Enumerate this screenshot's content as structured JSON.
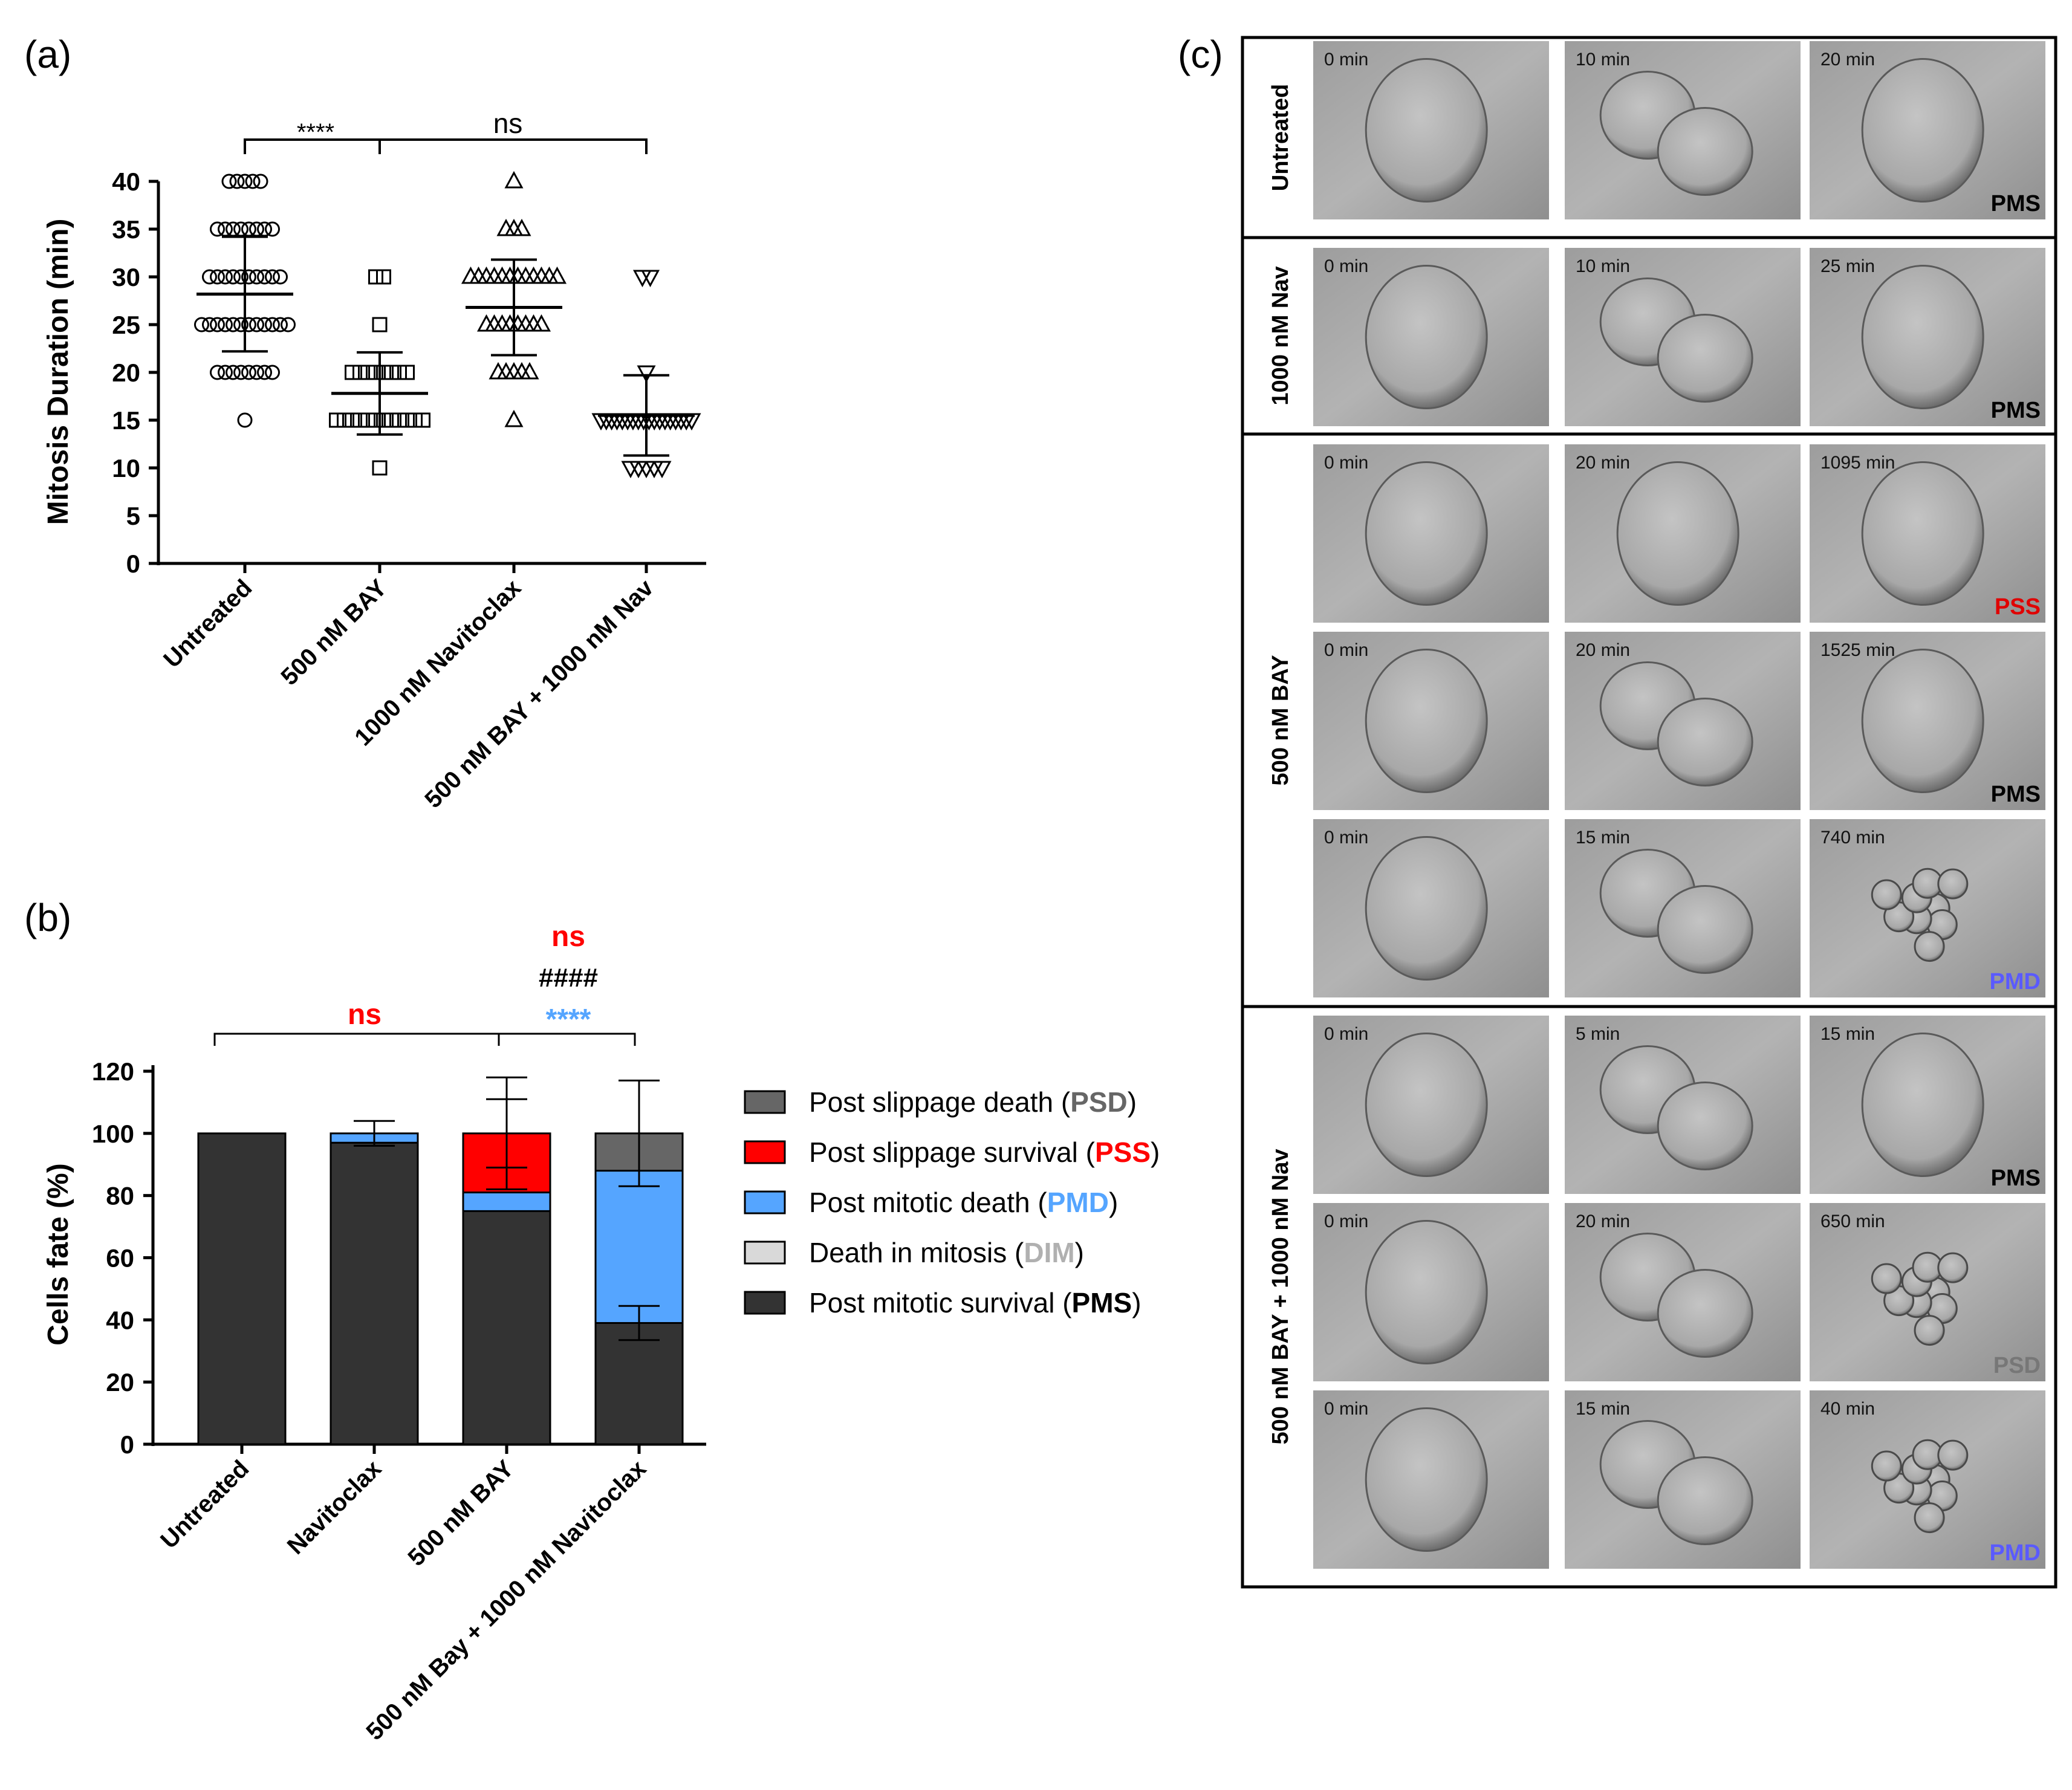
{
  "panel_labels": {
    "a": "(a)",
    "b": "(b)",
    "c": "(c)"
  },
  "chart_data": [
    {
      "type": "scatter",
      "panel": "a",
      "title": "",
      "xlabel": "",
      "ylabel": "Mitosis Duration (min)",
      "ylim": [
        0,
        40
      ],
      "yticks": [
        0,
        5,
        10,
        15,
        20,
        25,
        30,
        35,
        40
      ],
      "categories": [
        "Untreated",
        "500 nM BAY",
        "1000 nM Navitoclax",
        "500 nM BAY + 1000 nM Nav"
      ],
      "markers": [
        "circle",
        "square",
        "triangle-up",
        "triangle-down"
      ],
      "series": [
        {
          "name": "Untreated",
          "mean": 28.2,
          "sd": 6.0,
          "points": [
            [
              15,
              1
            ],
            [
              20,
              8
            ],
            [
              25,
              12
            ],
            [
              30,
              10
            ],
            [
              35,
              8
            ],
            [
              40,
              5
            ]
          ]
        },
        {
          "name": "500 nM BAY",
          "mean": 17.8,
          "sd": 4.3,
          "points": [
            [
              10,
              1
            ],
            [
              15,
              12
            ],
            [
              20,
              8
            ],
            [
              25,
              1
            ],
            [
              30,
              2
            ]
          ]
        },
        {
          "name": "1000 nM Navitoclax",
          "mean": 26.8,
          "sd": 5.0,
          "points": [
            [
              15,
              1
            ],
            [
              20,
              5
            ],
            [
              25,
              8
            ],
            [
              30,
              12
            ],
            [
              35,
              3
            ],
            [
              40,
              1
            ]
          ]
        },
        {
          "name": "500 nM BAY + 1000 nM Nav",
          "mean": 15.5,
          "sd": 4.2,
          "points": [
            [
              10,
              5
            ],
            [
              15,
              18
            ],
            [
              20,
              1
            ],
            [
              30,
              2
            ]
          ]
        }
      ],
      "annotations": [
        {
          "text": "****",
          "from": "Untreated",
          "to": "500 nM BAY"
        },
        {
          "text": "ns",
          "from": "500 nM BAY",
          "to": "500 nM BAY + 1000 nM Nav"
        }
      ]
    },
    {
      "type": "bar",
      "stacked": true,
      "panel": "b",
      "title": "",
      "xlabel": "",
      "ylabel": "Cells fate (%)",
      "ylim": [
        0,
        120
      ],
      "yticks": [
        0,
        20,
        40,
        60,
        80,
        100,
        120
      ],
      "categories": [
        "Untreated",
        "Navitoclax",
        "500 nM BAY",
        "500 nM Bay + 1000 nM Navitoclax"
      ],
      "series": [
        {
          "name": "Post mitotic survival",
          "abbr": "PMS",
          "color": "#333333",
          "values": [
            100,
            97,
            75,
            39
          ],
          "errors": [
            0,
            0,
            0,
            5.5
          ]
        },
        {
          "name": "Death in mitosis",
          "abbr": "DIM",
          "color": "#d9d9d9",
          "values": [
            0,
            0,
            0,
            0
          ],
          "errors": [
            0,
            0,
            0,
            0
          ]
        },
        {
          "name": "Post mitotic death",
          "abbr": "PMD",
          "color": "#55a5ff",
          "values": [
            0,
            3,
            6,
            49
          ],
          "errors": [
            0,
            0,
            0,
            0
          ]
        },
        {
          "name": "Post slippage survival",
          "abbr": "PSS",
          "color": "#ff0000",
          "values": [
            0,
            0,
            19,
            0
          ],
          "errors": [
            0,
            0,
            18,
            0
          ]
        },
        {
          "name": "Post slippage death",
          "abbr": "PSD",
          "color": "#666666",
          "values": [
            0,
            0,
            0,
            12
          ],
          "errors": [
            0,
            0,
            0,
            0
          ]
        }
      ],
      "total_errors": [
        0,
        4,
        11,
        17
      ],
      "legend_order": [
        "Post slippage death",
        "Post slippage survival",
        "Post mitotic death",
        "Death in mitosis",
        "Post mitotic survival"
      ],
      "legend_placement": "right",
      "annotations": [
        {
          "text": "ns",
          "color": "#ff0000",
          "from": "Untreated",
          "to": "500 nM BAY"
        },
        {
          "text": "****",
          "color": "#55a5ff",
          "from": "500 nM BAY",
          "to": "500 nM Bay + 1000 nM Navitoclax"
        },
        {
          "text": "####",
          "color": "#000000"
        },
        {
          "text": "ns",
          "color": "#ff0000"
        }
      ]
    }
  ],
  "panel_c": {
    "groups": [
      {
        "label": "Untreated",
        "rows": [
          {
            "times": [
              "0 min",
              "10 min",
              "20 min"
            ],
            "fate": "PMS",
            "fate_color": "#000000"
          }
        ]
      },
      {
        "label": "1000 nM Nav",
        "rows": [
          {
            "times": [
              "0 min",
              "10 min",
              "25 min"
            ],
            "fate": "PMS",
            "fate_color": "#000000"
          }
        ]
      },
      {
        "label": "500 nM BAY",
        "rows": [
          {
            "times": [
              "0 min",
              "20 min",
              "1095 min"
            ],
            "fate": "PSS",
            "fate_color": "#e00000"
          },
          {
            "times": [
              "0 min",
              "20 min",
              "1525 min"
            ],
            "fate": "PMS",
            "fate_color": "#000000"
          },
          {
            "times": [
              "0 min",
              "15 min",
              "740 min"
            ],
            "fate": "PMD",
            "fate_color": "#5a5aff"
          }
        ]
      },
      {
        "label": "500 nM  BAY  + 1000 nM Nav",
        "rows": [
          {
            "times": [
              "0 min",
              "5 min",
              "15  min"
            ],
            "fate": "PMS",
            "fate_color": "#000000"
          },
          {
            "times": [
              "0 min",
              "20 min",
              "650 min"
            ],
            "fate": "PSD",
            "fate_color": "#777777"
          },
          {
            "times": [
              "0 min",
              "15 min",
              "40 min"
            ],
            "fate": "PMD",
            "fate_color": "#5a5aff"
          }
        ]
      }
    ]
  }
}
